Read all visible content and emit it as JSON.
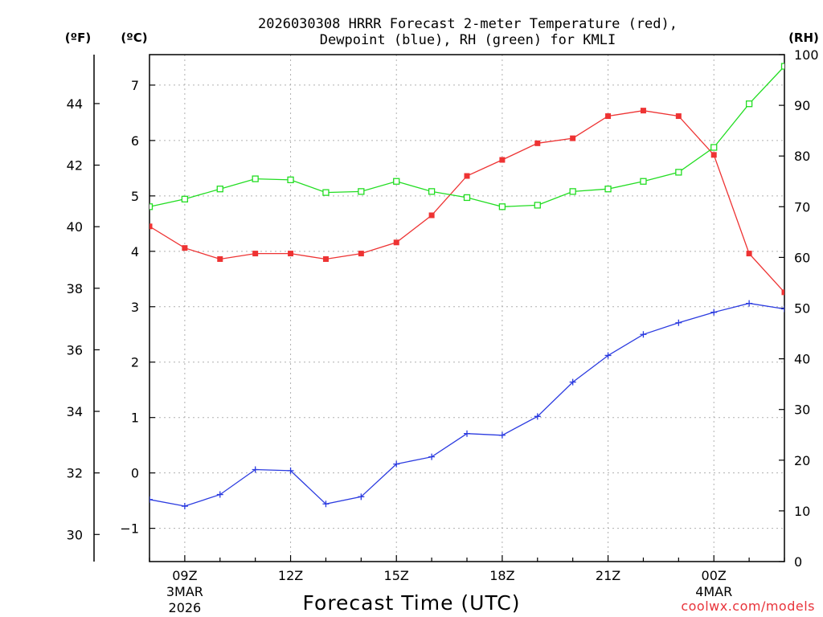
{
  "chart_data": {
    "type": "line",
    "title_line1": "2026030308 HRRR Forecast 2-meter Temperature (red),",
    "title_line2": "Dewpoint (blue), RH (green) for KMLI",
    "xlabel": "Forecast Time (UTC)",
    "credit": "coolwx.com/models",
    "units": {
      "left_f": "(ºF)",
      "left_c": "(ºC)",
      "right_rh": "(RH)"
    },
    "hours": [
      8,
      9,
      10,
      11,
      12,
      13,
      14,
      15,
      16,
      17,
      18,
      19,
      20,
      21,
      22,
      23,
      24,
      25,
      26
    ],
    "xlim": [
      8,
      26
    ],
    "x_ticks": [
      {
        "x": 9,
        "label": "09Z",
        "sub1": "3MAR",
        "sub2": "2026"
      },
      {
        "x": 12,
        "label": "12Z",
        "sub1": "",
        "sub2": ""
      },
      {
        "x": 15,
        "label": "15Z",
        "sub1": "",
        "sub2": ""
      },
      {
        "x": 18,
        "label": "18Z",
        "sub1": "",
        "sub2": ""
      },
      {
        "x": 21,
        "label": "21Z",
        "sub1": "",
        "sub2": ""
      },
      {
        "x": 24,
        "label": "00Z",
        "sub1": "4MAR",
        "sub2": ""
      }
    ],
    "celsius_axis": {
      "range": [
        -1.6,
        7.55
      ],
      "ticks": [
        -1,
        0,
        1,
        2,
        3,
        4,
        5,
        6,
        7
      ],
      "labels": [
        "−1",
        "0",
        "1",
        "2",
        "3",
        "4",
        "5",
        "6",
        "7"
      ]
    },
    "fahrenheit_axis": {
      "ticks": [
        30,
        32,
        34,
        36,
        38,
        40,
        42,
        44
      ],
      "labels": [
        "30",
        "32",
        "34",
        "36",
        "38",
        "40",
        "42",
        "44"
      ]
    },
    "rh_axis": {
      "range": [
        0,
        100
      ],
      "ticks": [
        0,
        10,
        20,
        30,
        40,
        50,
        60,
        70,
        80,
        90,
        100
      ],
      "labels": [
        "0",
        "10",
        "20",
        "30",
        "40",
        "50",
        "60",
        "70",
        "80",
        "90",
        "100"
      ]
    },
    "series": [
      {
        "name": "Temperature",
        "axis": "celsius",
        "color": "#ee3333",
        "marker": "filled-square",
        "values": [
          4.45,
          4.06,
          3.86,
          3.96,
          3.96,
          3.86,
          3.96,
          4.16,
          4.65,
          5.36,
          5.65,
          5.95,
          6.04,
          6.44,
          6.54,
          6.44,
          5.74,
          3.96,
          3.26
        ]
      },
      {
        "name": "Dewpoint",
        "axis": "celsius",
        "color": "#2b3be0",
        "marker": "plus",
        "values": [
          -0.48,
          -0.6,
          -0.39,
          0.06,
          0.04,
          -0.56,
          -0.43,
          0.16,
          0.29,
          0.71,
          0.68,
          1.02,
          1.64,
          2.12,
          2.5,
          2.71,
          2.9,
          3.06,
          2.96
        ]
      },
      {
        "name": "RH",
        "axis": "rh",
        "color": "#22dd22",
        "marker": "open-square",
        "values": [
          70.0,
          71.5,
          73.5,
          75.5,
          75.3,
          72.8,
          73.0,
          75.0,
          73.0,
          71.8,
          70.0,
          70.3,
          73.0,
          73.5,
          75.0,
          76.8,
          81.7,
          90.3,
          97.7
        ]
      }
    ]
  }
}
